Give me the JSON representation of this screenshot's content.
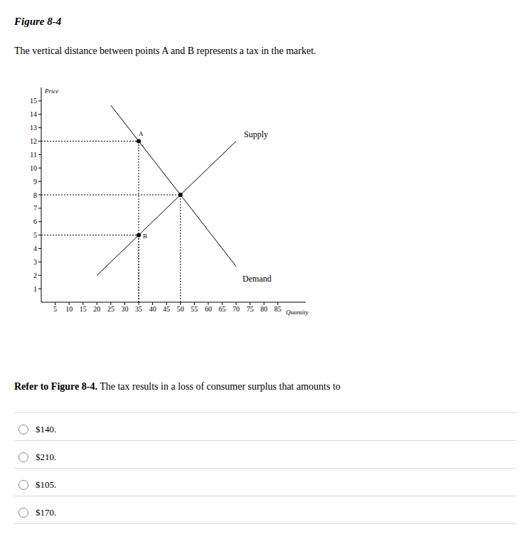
{
  "figure_title": "Figure 8-4",
  "caption": "The vertical distance between points A and B represents a tax in the market.",
  "chart_data": {
    "type": "line",
    "x_label": "Quantity",
    "y_label": "Price",
    "xlim": [
      0,
      95
    ],
    "xticks": [
      5,
      10,
      15,
      20,
      25,
      30,
      35,
      40,
      45,
      50,
      55,
      60,
      65,
      70,
      75,
      80,
      85
    ],
    "ylim": [
      0,
      16
    ],
    "yticks": [
      1,
      2,
      3,
      4,
      5,
      6,
      7,
      8,
      9,
      10,
      11,
      12,
      13,
      14,
      15
    ],
    "grid": false,
    "series": [
      {
        "name": "Supply",
        "color": "#000000",
        "x": [
          20,
          70
        ],
        "values": [
          2,
          12
        ]
      },
      {
        "name": "Demand",
        "color": "#000000",
        "x": [
          25,
          70
        ],
        "values": [
          14.67,
          2.67
        ]
      }
    ],
    "points": [
      {
        "label": "A",
        "x": 35,
        "y": 12
      },
      {
        "label": "B",
        "x": 35,
        "y": 5
      },
      {
        "x": 50,
        "y": 8
      }
    ]
  },
  "question": {
    "reference": "Refer to Figure 8-4.",
    "text": "The tax results in a loss of consumer surplus that amounts to"
  },
  "options": [
    "$140.",
    "$210.",
    "$105.",
    "$170."
  ]
}
